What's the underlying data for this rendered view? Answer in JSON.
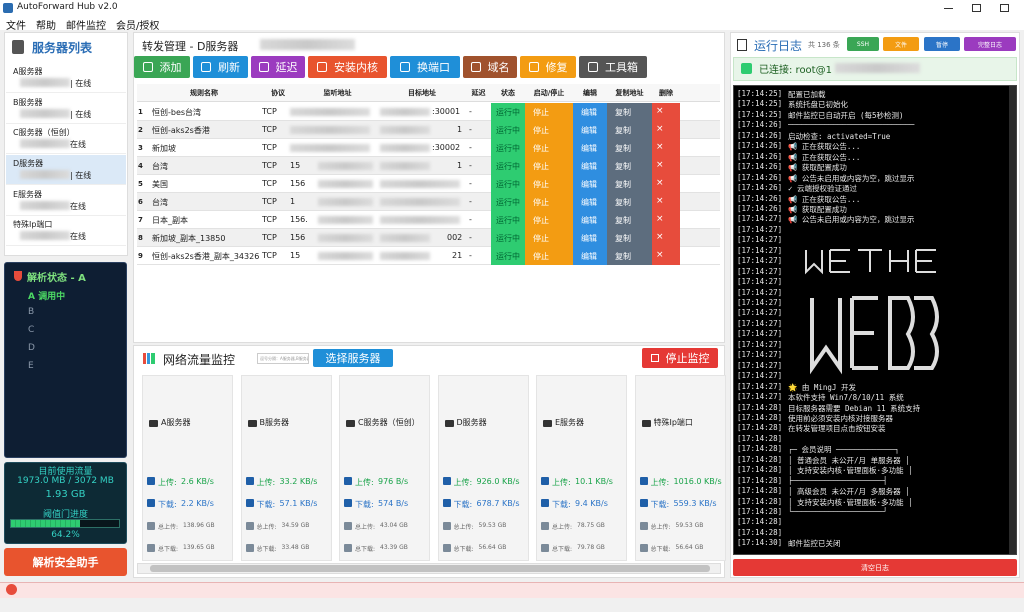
{
  "window": {
    "title": "AutoForward Hub v2.0"
  },
  "menu": [
    "文件",
    "帮助",
    "邮件监控",
    "会员/授权"
  ],
  "servers": {
    "title": "服务器列表",
    "items": [
      {
        "name": "A服务器",
        "status": "| 在线"
      },
      {
        "name": "B服务器",
        "status": "| 在线"
      },
      {
        "name": "C服务器（恒创）",
        "status": "在线"
      },
      {
        "name": "D服务器",
        "status": "| 在线"
      },
      {
        "name": "E服务器",
        "status": "在线"
      },
      {
        "name": "特殊Ip端口",
        "status": "在线"
      }
    ]
  },
  "parse": {
    "title": "解析状态 - A",
    "items": [
      "A 调用中",
      "B",
      "C",
      "D",
      "E"
    ]
  },
  "usage": {
    "title": "目前使用流量",
    "amount": "1973.0 MB / 3072 MB",
    "total": "1.93 GB",
    "progress_title": "阈值门进度",
    "progress": 64.2,
    "progress_label": "64.2%"
  },
  "assistant_button": "解析安全助手",
  "forward": {
    "title": "转发管理 - D服务器",
    "toolbar": [
      "添加",
      "刷新",
      "延迟",
      "安装内核",
      "换端口",
      "域名",
      "修复",
      "工具箱"
    ],
    "columns": [
      "规则名称",
      "协议",
      "监听地址",
      "目标地址",
      "延迟",
      "状态",
      "启动/停止",
      "编辑",
      "复制地址",
      "删除"
    ],
    "rows": [
      {
        "no": 1,
        "name": "恒创-bes台湾",
        "protocol": "TCP",
        "target": ":30001",
        "delay": "-",
        "status": "运行中",
        "toggle": "停止",
        "edit": "编辑",
        "copy": "复制",
        "delete": "×"
      },
      {
        "no": 2,
        "name": "恒创-aks2s香港",
        "protocol": "TCP",
        "target": "1",
        "delay": "-",
        "status": "运行中",
        "toggle": "停止",
        "edit": "编辑",
        "copy": "复制",
        "delete": "×"
      },
      {
        "no": 3,
        "name": "新加坡",
        "protocol": "TCP",
        "target": ":30002",
        "delay": "-",
        "status": "运行中",
        "toggle": "停止",
        "edit": "编辑",
        "copy": "复制",
        "delete": "×"
      },
      {
        "no": 4,
        "name": "台湾",
        "protocol": "TCP",
        "listen": "15",
        "target": "1",
        "delay": "-",
        "status": "运行中",
        "toggle": "停止",
        "edit": "编辑",
        "copy": "复制",
        "delete": "×"
      },
      {
        "no": 5,
        "name": "美国",
        "protocol": "TCP",
        "listen": "156",
        "delay": "-",
        "status": "运行中",
        "toggle": "停止",
        "edit": "编辑",
        "copy": "复制",
        "delete": "×"
      },
      {
        "no": 6,
        "name": "台湾",
        "protocol": "TCP",
        "listen": "1",
        "delay": "-",
        "status": "运行中",
        "toggle": "停止",
        "edit": "编辑",
        "copy": "复制",
        "delete": "×"
      },
      {
        "no": 7,
        "name": "日本_副本",
        "protocol": "TCP",
        "listen": "156.",
        "delay": "-",
        "status": "运行中",
        "toggle": "停止",
        "edit": "编辑",
        "copy": "复制",
        "delete": "×"
      },
      {
        "no": 8,
        "name": "新加坡_副本_13850",
        "protocol": "TCP",
        "listen": "156",
        "target": "002",
        "delay": "-",
        "status": "运行中",
        "toggle": "停止",
        "edit": "编辑",
        "copy": "复制",
        "delete": "×"
      },
      {
        "no": 9,
        "name": "恒创-aks2s香港_副本_34326",
        "protocol": "TCP",
        "listen": "15",
        "target": "21",
        "delay": "-",
        "status": "运行中",
        "toggle": "停止",
        "edit": "编辑",
        "copy": "复制",
        "delete": "×"
      }
    ]
  },
  "monitor": {
    "title": "网络流量监控",
    "filter_placeholder": "逗号分隔：A服务器,B服务器",
    "select_button": "选择服务器",
    "stop_button": "停止监控",
    "labels": {
      "up": "上传:",
      "down": "下载:",
      "total_up": "总上传:",
      "total_down": "总下载:"
    },
    "cards": [
      {
        "name": "A服务器",
        "up": "2.6 KB/s",
        "down": "2.2 KB/s",
        "total_up": "138.96 GB",
        "total_down": "139.65 GB"
      },
      {
        "name": "B服务器",
        "up": "33.2 KB/s",
        "down": "57.1 KB/s",
        "total_up": "34.59 GB",
        "total_down": "33.48 GB"
      },
      {
        "name": "C服务器（恒创）",
        "up": "976 B/s",
        "down": "574 B/s",
        "total_up": "43.04 GB",
        "total_down": "43.39 GB"
      },
      {
        "name": "D服务器",
        "up": "926.0 KB/s",
        "down": "678.7 KB/s",
        "total_up": "59.53 GB",
        "total_down": "56.64 GB"
      },
      {
        "name": "E服务器",
        "up": "10.1 KB/s",
        "down": "9.4 KB/s",
        "total_up": "78.75 GB",
        "total_down": "79.78 GB"
      },
      {
        "name": "特殊Ip端口",
        "up": "1016.0 KB/s",
        "down": "559.3 KB/s",
        "total_up": "59.53 GB",
        "total_down": "56.64 GB"
      }
    ]
  },
  "log": {
    "title": "运行日志",
    "count": "共 136 条",
    "buttons": [
      "SSH",
      "文件",
      "暂停",
      "完整日志"
    ],
    "connected": "已连接: root@1",
    "clear": "清空日志",
    "entries": [
      {
        "time": "[17:14:25]",
        "text": "配置已加载"
      },
      {
        "time": "[17:14:25]",
        "text": "系统托盘已初始化"
      },
      {
        "time": "[17:14:25]",
        "text": "邮件监控已自动开启 (每5秒检测)"
      },
      {
        "time": "[17:14:26]",
        "text": "────────────────────────────"
      },
      {
        "time": "[17:14:26]",
        "text": "启动检查: activated=True"
      },
      {
        "time": "[17:14:26]",
        "text": "📢 正在获取公告..."
      },
      {
        "time": "[17:14:26]",
        "text": "📢 正在获取公告..."
      },
      {
        "time": "[17:14:26]",
        "text": "📢 获取配置成功"
      },
      {
        "time": "[17:14:26]",
        "text": "📢 公告未启用或内容为空，跳过显示"
      },
      {
        "time": "[17:14:26]",
        "text": "✓ 云端授权验证通过"
      },
      {
        "time": "[17:14:26]",
        "text": "📢 正在获取公告..."
      },
      {
        "time": "[17:14:26]",
        "text": "📢 获取配置成功"
      },
      {
        "time": "[17:14:27]",
        "text": "📢 公告未启用或内容为空，跳过显示"
      },
      {
        "time": "[17:14:27]"
      },
      {
        "time": "[17:14:27]"
      },
      {
        "time": "[17:14:27]"
      },
      {
        "time": "[17:14:27]"
      },
      {
        "time": "[17:14:27]"
      },
      {
        "time": "[17:14:27]"
      },
      {
        "time": "[17:14:27]"
      },
      {
        "time": "[17:14:27]"
      },
      {
        "time": "[17:14:27]"
      },
      {
        "time": "[17:14:27]"
      },
      {
        "time": "[17:14:27]"
      },
      {
        "time": "[17:14:27]"
      },
      {
        "time": "[17:14:27]"
      },
      {
        "time": "[17:14:27]"
      },
      {
        "time": "[17:14:27]"
      },
      {
        "time": "[17:14:27]",
        "text": "   🌟 由 MingJ 开发"
      },
      {
        "time": "[17:14:27]",
        "text": "   本软件支持 Win7/8/10/11 系统"
      },
      {
        "time": "[17:14:28]",
        "text": "   目标服务器需要 Debian 11 系统支持"
      },
      {
        "time": "[17:14:28]",
        "text": "   使用前必须安装内核对接服务器"
      },
      {
        "time": "[17:14:28]",
        "text": "   在转发管理项目点击按钮安装"
      },
      {
        "time": "[17:14:28]"
      },
      {
        "time": "[17:14:28]",
        "text": " ┌─ 会员说明 ─────────────┐"
      },
      {
        "time": "[17:14:28]",
        "text": " │ 普通会员 未公开/月 单服务器   │"
      },
      {
        "time": "[17:14:28]",
        "text": " │ 支持安装内核·管理面板·多功能  │"
      },
      {
        "time": "[17:14:28]",
        "text": " ├────────────────────┤"
      },
      {
        "time": "[17:14:28]",
        "text": " │ 高级会员 未公开/月 多服务器   │"
      },
      {
        "time": "[17:14:28]",
        "text": " │ 支持安装内核·管理面板·多功能  │"
      },
      {
        "time": "[17:14:28]",
        "text": " └────────────────────┘"
      },
      {
        "time": "[17:14:28]"
      },
      {
        "time": "[17:14:28]"
      },
      {
        "time": "[17:14:30]",
        "text": "邮件监控已关闭"
      }
    ]
  }
}
